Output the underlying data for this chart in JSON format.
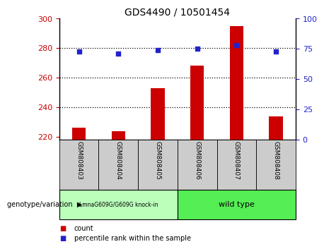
{
  "title": "GDS4490 / 10501454",
  "samples": [
    "GSM808403",
    "GSM808404",
    "GSM808405",
    "GSM808406",
    "GSM808407",
    "GSM808408"
  ],
  "counts": [
    226,
    224,
    253,
    268,
    295,
    234
  ],
  "percentile_ranks": [
    73,
    71,
    74,
    75,
    78,
    73
  ],
  "ylim_left": [
    218,
    300
  ],
  "ylim_right": [
    0,
    100
  ],
  "yticks_left": [
    220,
    240,
    260,
    280,
    300
  ],
  "yticks_right": [
    0,
    25,
    50,
    75,
    100
  ],
  "bar_color": "#cc0000",
  "dot_color": "#2222cc",
  "grid_color": "#000000",
  "group1_label": "LmnaG609G/G609G knock-in",
  "group2_label": "wild type",
  "group1_color": "#bbffbb",
  "group2_color": "#55ee55",
  "group1_indices": [
    0,
    1,
    2
  ],
  "group2_indices": [
    3,
    4,
    5
  ],
  "xlabel": "genotype/variation",
  "legend_count": "count",
  "legend_percentile": "percentile rank within the sample",
  "background_color": "#ffffff",
  "tick_area_color": "#cccccc"
}
